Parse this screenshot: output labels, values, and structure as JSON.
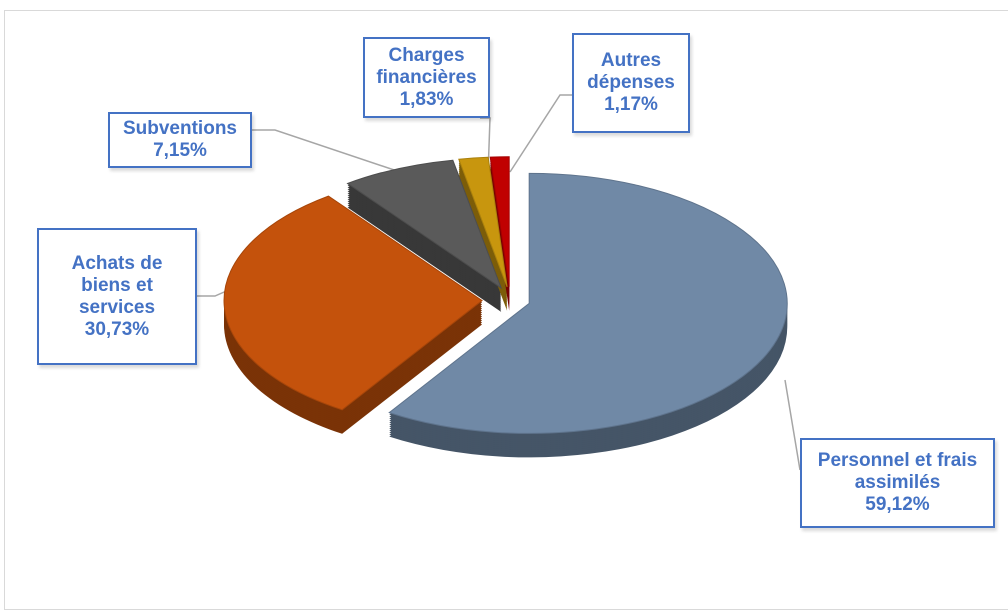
{
  "chart_data": {
    "type": "pie",
    "categories": [
      "Personnel et frais assimilés",
      "Achats de biens et services",
      "Subventions",
      "Charges financières",
      "Autres dépenses"
    ],
    "values": [
      59.12,
      30.73,
      7.15,
      1.83,
      1.17
    ],
    "value_labels": [
      "59,12%",
      "30,73%",
      "7,15%",
      "1,83%",
      "1,17%"
    ],
    "colors": [
      "#7089a6",
      "#c4520c",
      "#5a5a5a",
      "#c8960e",
      "#c00000"
    ]
  }
}
